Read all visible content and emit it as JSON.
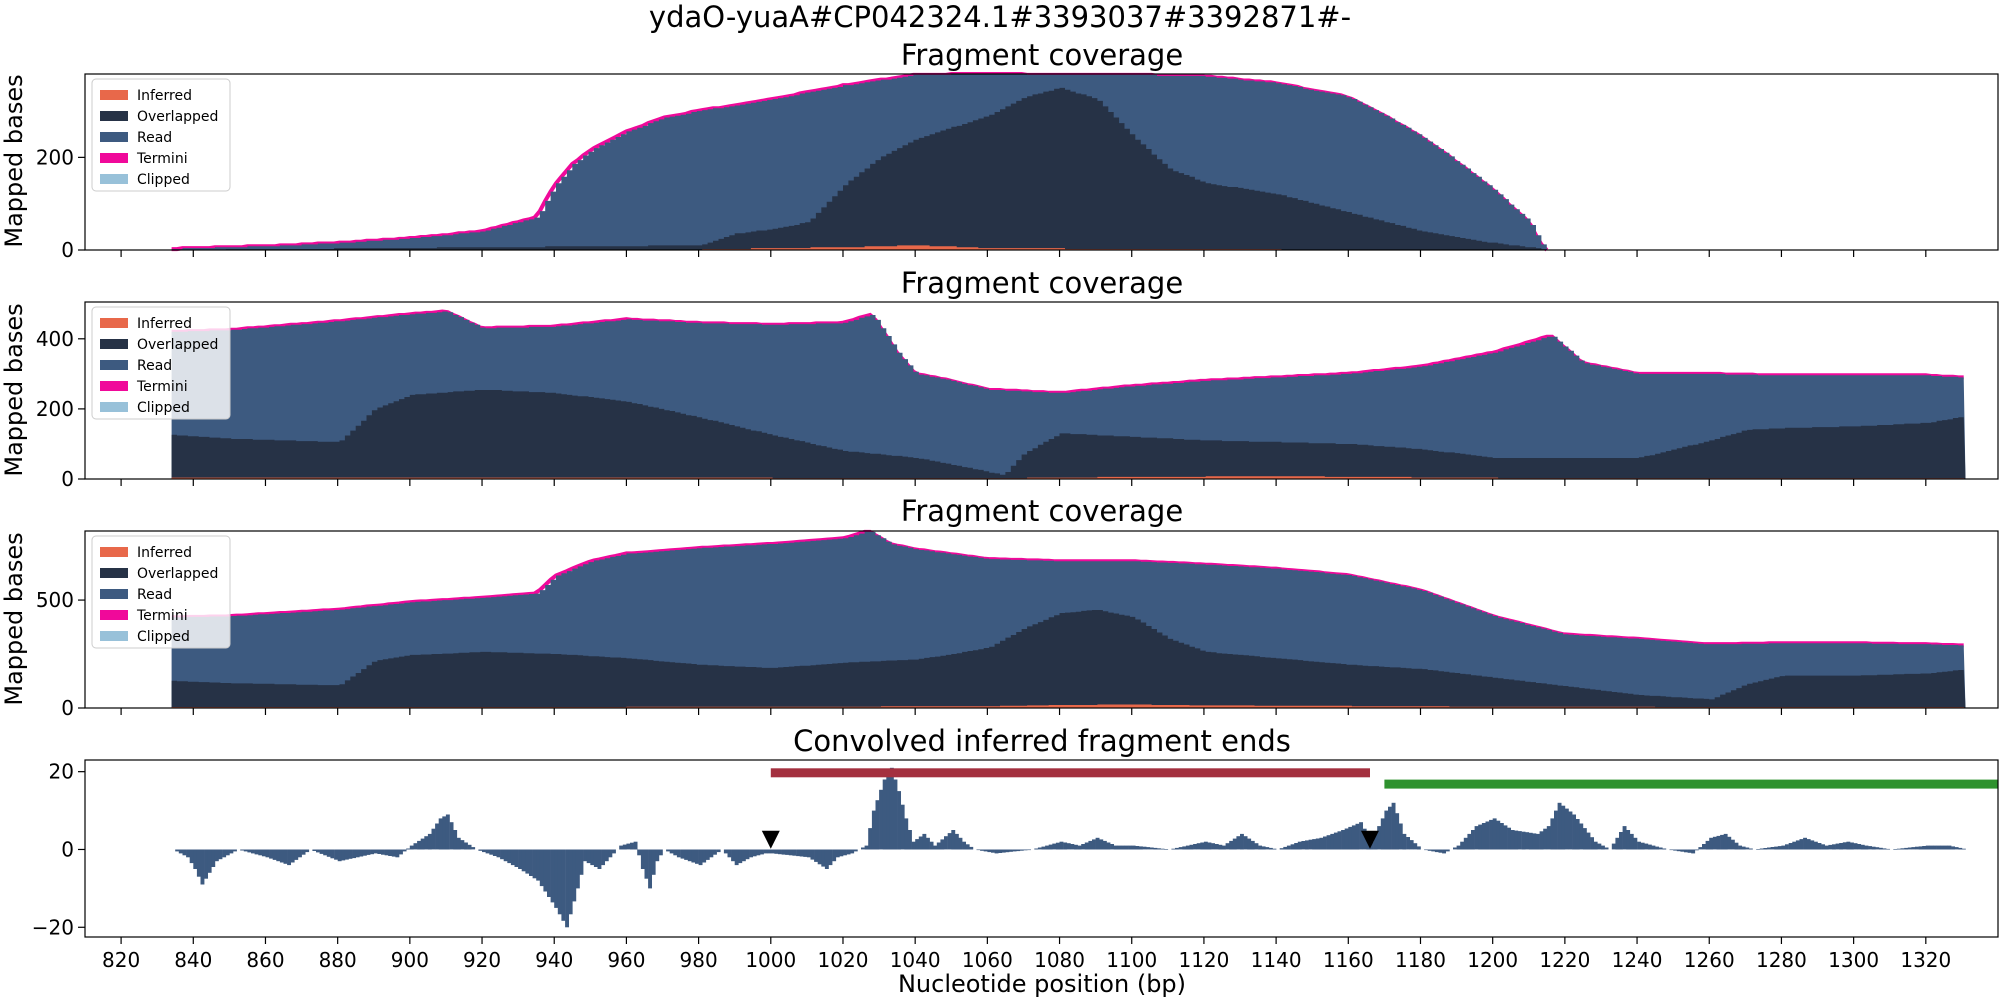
{
  "figure": {
    "suptitle": "ydaO-yuaA#CP042324.1#3393037#3392871#-",
    "xlabel": "Nucleotide position (bp)"
  },
  "colors": {
    "inferred": "#e8684a",
    "overlapped": "#263246",
    "read": "#3d5a80",
    "termini": "#f0099a",
    "clipped": "#98c1d9",
    "conv": "#3d5a80",
    "red_bar": "#a4303f",
    "green_bar": "#2f922f",
    "marker": "#000000"
  },
  "chart_data": [
    {
      "type": "area",
      "title": "Fragment coverage",
      "ylabel": "Mapped bases",
      "xlim": [
        810,
        1340
      ],
      "ylim": [
        0,
        380
      ],
      "yticks": [
        0,
        200
      ],
      "xticks": [
        820,
        840,
        860,
        880,
        900,
        920,
        940,
        960,
        980,
        1000,
        1020,
        1040,
        1060,
        1080,
        1100,
        1120,
        1140,
        1160,
        1180,
        1200,
        1220,
        1240,
        1260,
        1280,
        1300,
        1320
      ],
      "legend": {
        "position": "top-left",
        "entries": [
          "Inferred",
          "Overlapped",
          "Read",
          "Termini",
          "Clipped"
        ]
      },
      "series": [
        {
          "name": "Read",
          "x": [
            834,
            840,
            860,
            880,
            900,
            920,
            935,
            940,
            945,
            950,
            960,
            970,
            980,
            1000,
            1020,
            1040,
            1060,
            1080,
            1100,
            1120,
            1140,
            1150,
            1160,
            1170,
            1180,
            1190,
            1200,
            1210,
            1214,
            1215
          ],
          "values": [
            2,
            4,
            8,
            15,
            25,
            40,
            70,
            140,
            185,
            215,
            255,
            285,
            300,
            325,
            355,
            378,
            380,
            378,
            378,
            375,
            360,
            345,
            330,
            290,
            245,
            190,
            130,
            60,
            5,
            0
          ]
        },
        {
          "name": "Overlapped",
          "x": [
            834,
            980,
            990,
            1000,
            1010,
            1015,
            1020,
            1030,
            1040,
            1050,
            1060,
            1070,
            1080,
            1090,
            1100,
            1110,
            1120,
            1140,
            1160,
            1180,
            1200,
            1214,
            1215
          ],
          "values": [
            0,
            10,
            35,
            45,
            60,
            100,
            140,
            200,
            240,
            265,
            290,
            330,
            350,
            325,
            245,
            175,
            145,
            120,
            80,
            40,
            15,
            2,
            0
          ]
        },
        {
          "name": "Inferred",
          "x": [
            834,
            980,
            1000,
            1020,
            1040,
            1060,
            1080,
            1100,
            1120,
            1140,
            1215
          ],
          "values": [
            0,
            1,
            4,
            6,
            10,
            4,
            3,
            2,
            2,
            1,
            0
          ]
        }
      ]
    },
    {
      "type": "area",
      "title": "Fragment coverage",
      "ylabel": "Mapped bases",
      "xlim": [
        810,
        1340
      ],
      "ylim": [
        0,
        505
      ],
      "yticks": [
        0,
        200,
        400
      ],
      "xticks": [
        820,
        840,
        860,
        880,
        900,
        920,
        940,
        960,
        980,
        1000,
        1020,
        1040,
        1060,
        1080,
        1100,
        1120,
        1140,
        1160,
        1180,
        1200,
        1220,
        1240,
        1260,
        1280,
        1300,
        1320
      ],
      "legend": {
        "position": "top-left",
        "entries": [
          "Inferred",
          "Overlapped",
          "Read",
          "Termini",
          "Clipped"
        ]
      },
      "series": [
        {
          "name": "Read",
          "x": [
            834,
            850,
            880,
            900,
            910,
            920,
            940,
            960,
            980,
            1000,
            1020,
            1028,
            1035,
            1040,
            1050,
            1060,
            1080,
            1100,
            1120,
            1140,
            1160,
            1180,
            1200,
            1210,
            1216,
            1225,
            1240,
            1260,
            1280,
            1300,
            1320,
            1331
          ],
          "values": [
            420,
            425,
            450,
            470,
            478,
            430,
            435,
            455,
            445,
            440,
            445,
            470,
            360,
            300,
            280,
            255,
            245,
            265,
            280,
            290,
            300,
            320,
            360,
            390,
            410,
            330,
            300,
            300,
            295,
            295,
            295,
            290
          ]
        },
        {
          "name": "Overlapped",
          "x": [
            834,
            850,
            880,
            890,
            900,
            920,
            940,
            960,
            980,
            1000,
            1020,
            1040,
            1060,
            1064,
            1070,
            1080,
            1100,
            1120,
            1140,
            1160,
            1180,
            1200,
            1240,
            1260,
            1270,
            1280,
            1300,
            1320,
            1331
          ],
          "values": [
            125,
            115,
            105,
            200,
            240,
            255,
            245,
            220,
            175,
            125,
            80,
            60,
            20,
            10,
            75,
            130,
            120,
            110,
            105,
            100,
            85,
            60,
            60,
            110,
            140,
            145,
            150,
            160,
            180
          ]
        },
        {
          "name": "Inferred",
          "x": [
            834,
            900,
            1000,
            1060,
            1100,
            1140,
            1200,
            1331
          ],
          "values": [
            3,
            4,
            3,
            2,
            6,
            8,
            3,
            2
          ]
        }
      ]
    },
    {
      "type": "area",
      "title": "Fragment coverage",
      "ylabel": "Mapped bases",
      "xlim": [
        810,
        1340
      ],
      "ylim": [
        0,
        820
      ],
      "yticks": [
        0,
        500
      ],
      "xticks": [
        820,
        840,
        860,
        880,
        900,
        920,
        940,
        960,
        980,
        1000,
        1020,
        1040,
        1060,
        1080,
        1100,
        1120,
        1140,
        1160,
        1180,
        1200,
        1220,
        1240,
        1260,
        1280,
        1300,
        1320
      ],
      "legend": {
        "position": "top-left",
        "entries": [
          "Inferred",
          "Overlapped",
          "Read",
          "Termini",
          "Clipped"
        ]
      },
      "series": [
        {
          "name": "Read",
          "x": [
            834,
            850,
            880,
            900,
            920,
            935,
            940,
            950,
            960,
            980,
            1000,
            1020,
            1027,
            1033,
            1040,
            1060,
            1080,
            1100,
            1120,
            1140,
            1160,
            1180,
            1200,
            1220,
            1240,
            1260,
            1280,
            1300,
            1320,
            1331
          ],
          "values": [
            420,
            425,
            455,
            490,
            510,
            530,
            610,
            680,
            715,
            740,
            760,
            785,
            820,
            760,
            735,
            690,
            680,
            680,
            665,
            645,
            615,
            545,
            425,
            340,
            320,
            295,
            300,
            300,
            295,
            290
          ]
        },
        {
          "name": "Overlapped",
          "x": [
            834,
            850,
            880,
            890,
            900,
            920,
            940,
            960,
            980,
            1000,
            1020,
            1040,
            1050,
            1060,
            1070,
            1080,
            1090,
            1100,
            1110,
            1120,
            1140,
            1160,
            1180,
            1200,
            1220,
            1240,
            1260,
            1270,
            1280,
            1300,
            1320,
            1331
          ],
          "values": [
            125,
            115,
            105,
            220,
            245,
            260,
            250,
            230,
            200,
            185,
            210,
            225,
            250,
            280,
            370,
            440,
            455,
            420,
            320,
            260,
            230,
            200,
            180,
            140,
            100,
            60,
            40,
            110,
            150,
            150,
            160,
            180
          ]
        },
        {
          "name": "Inferred",
          "x": [
            834,
            960,
            1000,
            1060,
            1080,
            1100,
            1120,
            1200,
            1331
          ],
          "values": [
            3,
            5,
            6,
            8,
            14,
            16,
            12,
            6,
            3
          ]
        }
      ]
    },
    {
      "type": "bar",
      "title": "Convolved inferred fragment ends",
      "ylabel": "",
      "xlim": [
        810,
        1340
      ],
      "ylim": [
        -22.5,
        23
      ],
      "yticks": [
        -20,
        0,
        20
      ],
      "xticks": [
        820,
        840,
        860,
        880,
        900,
        920,
        940,
        960,
        980,
        1000,
        1020,
        1040,
        1060,
        1080,
        1100,
        1120,
        1140,
        1160,
        1180,
        1200,
        1220,
        1240,
        1260,
        1280,
        1300,
        1320
      ],
      "series": [
        {
          "name": "",
          "x": [
            834,
            838,
            840,
            842,
            846,
            852,
            860,
            866,
            872,
            880,
            890,
            896,
            900,
            905,
            908,
            910,
            913,
            918,
            924,
            930,
            935,
            940,
            943,
            946,
            948,
            952,
            958,
            962,
            964,
            966,
            968,
            970,
            974,
            980,
            986,
            990,
            994,
            998,
            1000,
            1010,
            1015,
            1018,
            1022,
            1026,
            1028,
            1031,
            1033,
            1035,
            1037,
            1039,
            1042,
            1045,
            1050,
            1053,
            1056,
            1062,
            1072,
            1080,
            1085,
            1090,
            1095,
            1100,
            1110,
            1120,
            1125,
            1130,
            1135,
            1140,
            1146,
            1152,
            1158,
            1163,
            1166,
            1170,
            1172,
            1175,
            1180,
            1186,
            1190,
            1195,
            1200,
            1205,
            1212,
            1215,
            1218,
            1222,
            1228,
            1232,
            1236,
            1240,
            1248,
            1255,
            1260,
            1264,
            1268,
            1272,
            1280,
            1286,
            1292,
            1298,
            1303,
            1310,
            1320,
            1326,
            1331
          ],
          "values": [
            0,
            -2,
            -5,
            -9,
            -3,
            0,
            -2,
            -4,
            0,
            -3,
            -1,
            -2,
            1,
            4,
            8,
            9,
            3,
            0,
            -2,
            -5,
            -8,
            -15,
            -20,
            -10,
            -3,
            -5,
            1,
            2,
            -5,
            -10,
            -3,
            0,
            -2,
            -4,
            0,
            -4,
            -2,
            -1,
            -1,
            -2,
            -5,
            -2,
            -1,
            1,
            10,
            18,
            21,
            15,
            8,
            2,
            4,
            1,
            5,
            2,
            0,
            -1,
            0,
            2,
            1,
            3,
            1,
            1,
            0,
            2,
            1,
            4,
            1,
            0,
            2,
            3,
            5,
            7,
            2,
            10,
            12,
            4,
            0,
            -1,
            1,
            6,
            8,
            5,
            4,
            6,
            12,
            9,
            2,
            0,
            6,
            2,
            0,
            -1,
            3,
            4,
            1,
            0,
            1,
            3,
            1,
            2,
            1,
            0,
            1,
            1,
            0
          ]
        }
      ],
      "annotations": [
        {
          "type": "range_bar",
          "color": "red",
          "x_start": 1000,
          "x_end": 1166,
          "y": 19.7
        },
        {
          "type": "range_bar",
          "color": "green",
          "x_start": 1170,
          "x_end": 1340,
          "y": 16.8
        },
        {
          "type": "marker",
          "shape": "triangle-down",
          "x": 1000,
          "y": 2.5
        },
        {
          "type": "marker",
          "shape": "triangle-down",
          "x": 1166,
          "y": 2.5
        }
      ]
    }
  ]
}
